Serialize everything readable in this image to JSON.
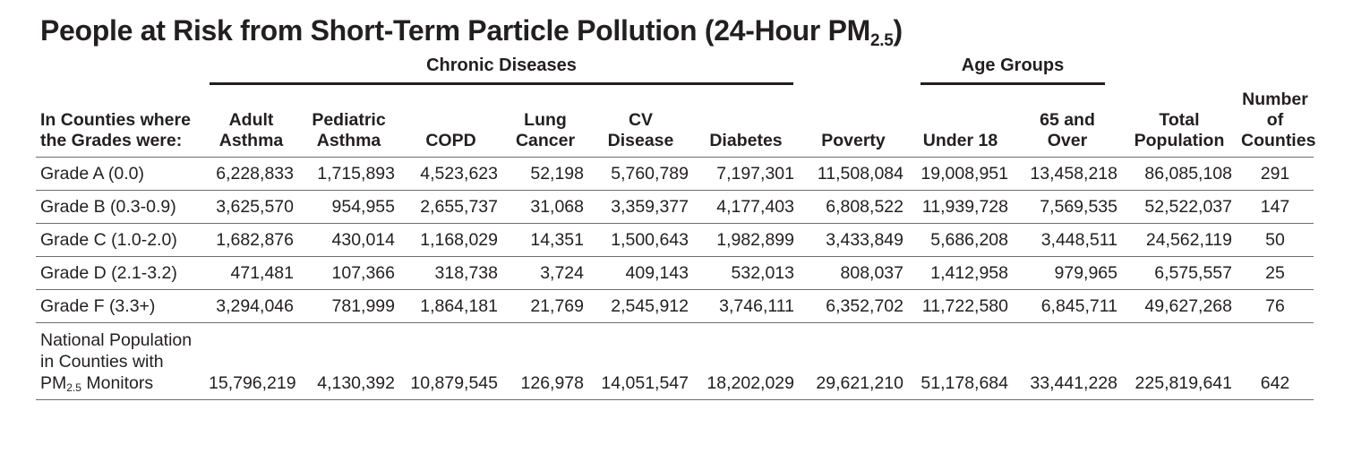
{
  "title": {
    "main": "People at Risk from Short-Term Particle Pollution (24-Hour PM",
    "sub": "2.5",
    "close": ")"
  },
  "groups": {
    "chronic": "Chronic Diseases",
    "age": "Age Groups"
  },
  "headers": [
    [
      "In Counties where",
      "the Grades were:"
    ],
    [
      "Adult",
      "Asthma"
    ],
    [
      "Pediatric",
      "Asthma"
    ],
    [
      "COPD"
    ],
    [
      "Lung",
      "Cancer"
    ],
    [
      "CV",
      "Disease"
    ],
    [
      "Diabetes"
    ],
    [
      "Poverty"
    ],
    [
      "Under 18"
    ],
    [
      "65 and",
      "Over"
    ],
    [
      "Total",
      "Population"
    ],
    [
      "Number",
      "of",
      "Counties"
    ]
  ],
  "rows": [
    [
      "Grade A (0.0)",
      "6,228,833",
      "1,715,893",
      "4,523,623",
      "52,198",
      "5,760,789",
      "7,197,301",
      "11,508,084",
      "19,008,951",
      "13,458,218",
      "86,085,108",
      "291"
    ],
    [
      "Grade B  (0.3-0.9)",
      "3,625,570",
      "954,955",
      "2,655,737",
      "31,068",
      "3,359,377",
      "4,177,403",
      "6,808,522",
      "11,939,728",
      "7,569,535",
      "52,522,037",
      "147"
    ],
    [
      "Grade C (1.0-2.0)",
      "1,682,876",
      "430,014",
      "1,168,029",
      "14,351",
      "1,500,643",
      "1,982,899",
      "3,433,849",
      "5,686,208",
      "3,448,511",
      "24,562,119",
      "50"
    ],
    [
      "Grade D (2.1-3.2)",
      "471,481",
      "107,366",
      "318,738",
      "3,724",
      "409,143",
      "532,013",
      "808,037",
      "1,412,958",
      "979,965",
      "6,575,557",
      "25"
    ],
    [
      "Grade F (3.3+)",
      "3,294,046",
      "781,999",
      "1,864,181",
      "21,769",
      "2,545,912",
      "3,746,111",
      "6,352,702",
      "11,722,580",
      "6,845,711",
      "49,627,268",
      "76"
    ]
  ],
  "national": {
    "label": {
      "line1": "National Population",
      "line2": "in Counties with",
      "pm": "PM",
      "pm_sub": "2.5",
      "tail": " Monitors"
    },
    "values": [
      "15,796,219",
      "4,130,392",
      "10,879,545",
      "126,978",
      "14,051,547",
      "18,202,029",
      "29,621,210",
      "51,178,684",
      "33,441,228",
      "225,819,641",
      "642"
    ]
  }
}
